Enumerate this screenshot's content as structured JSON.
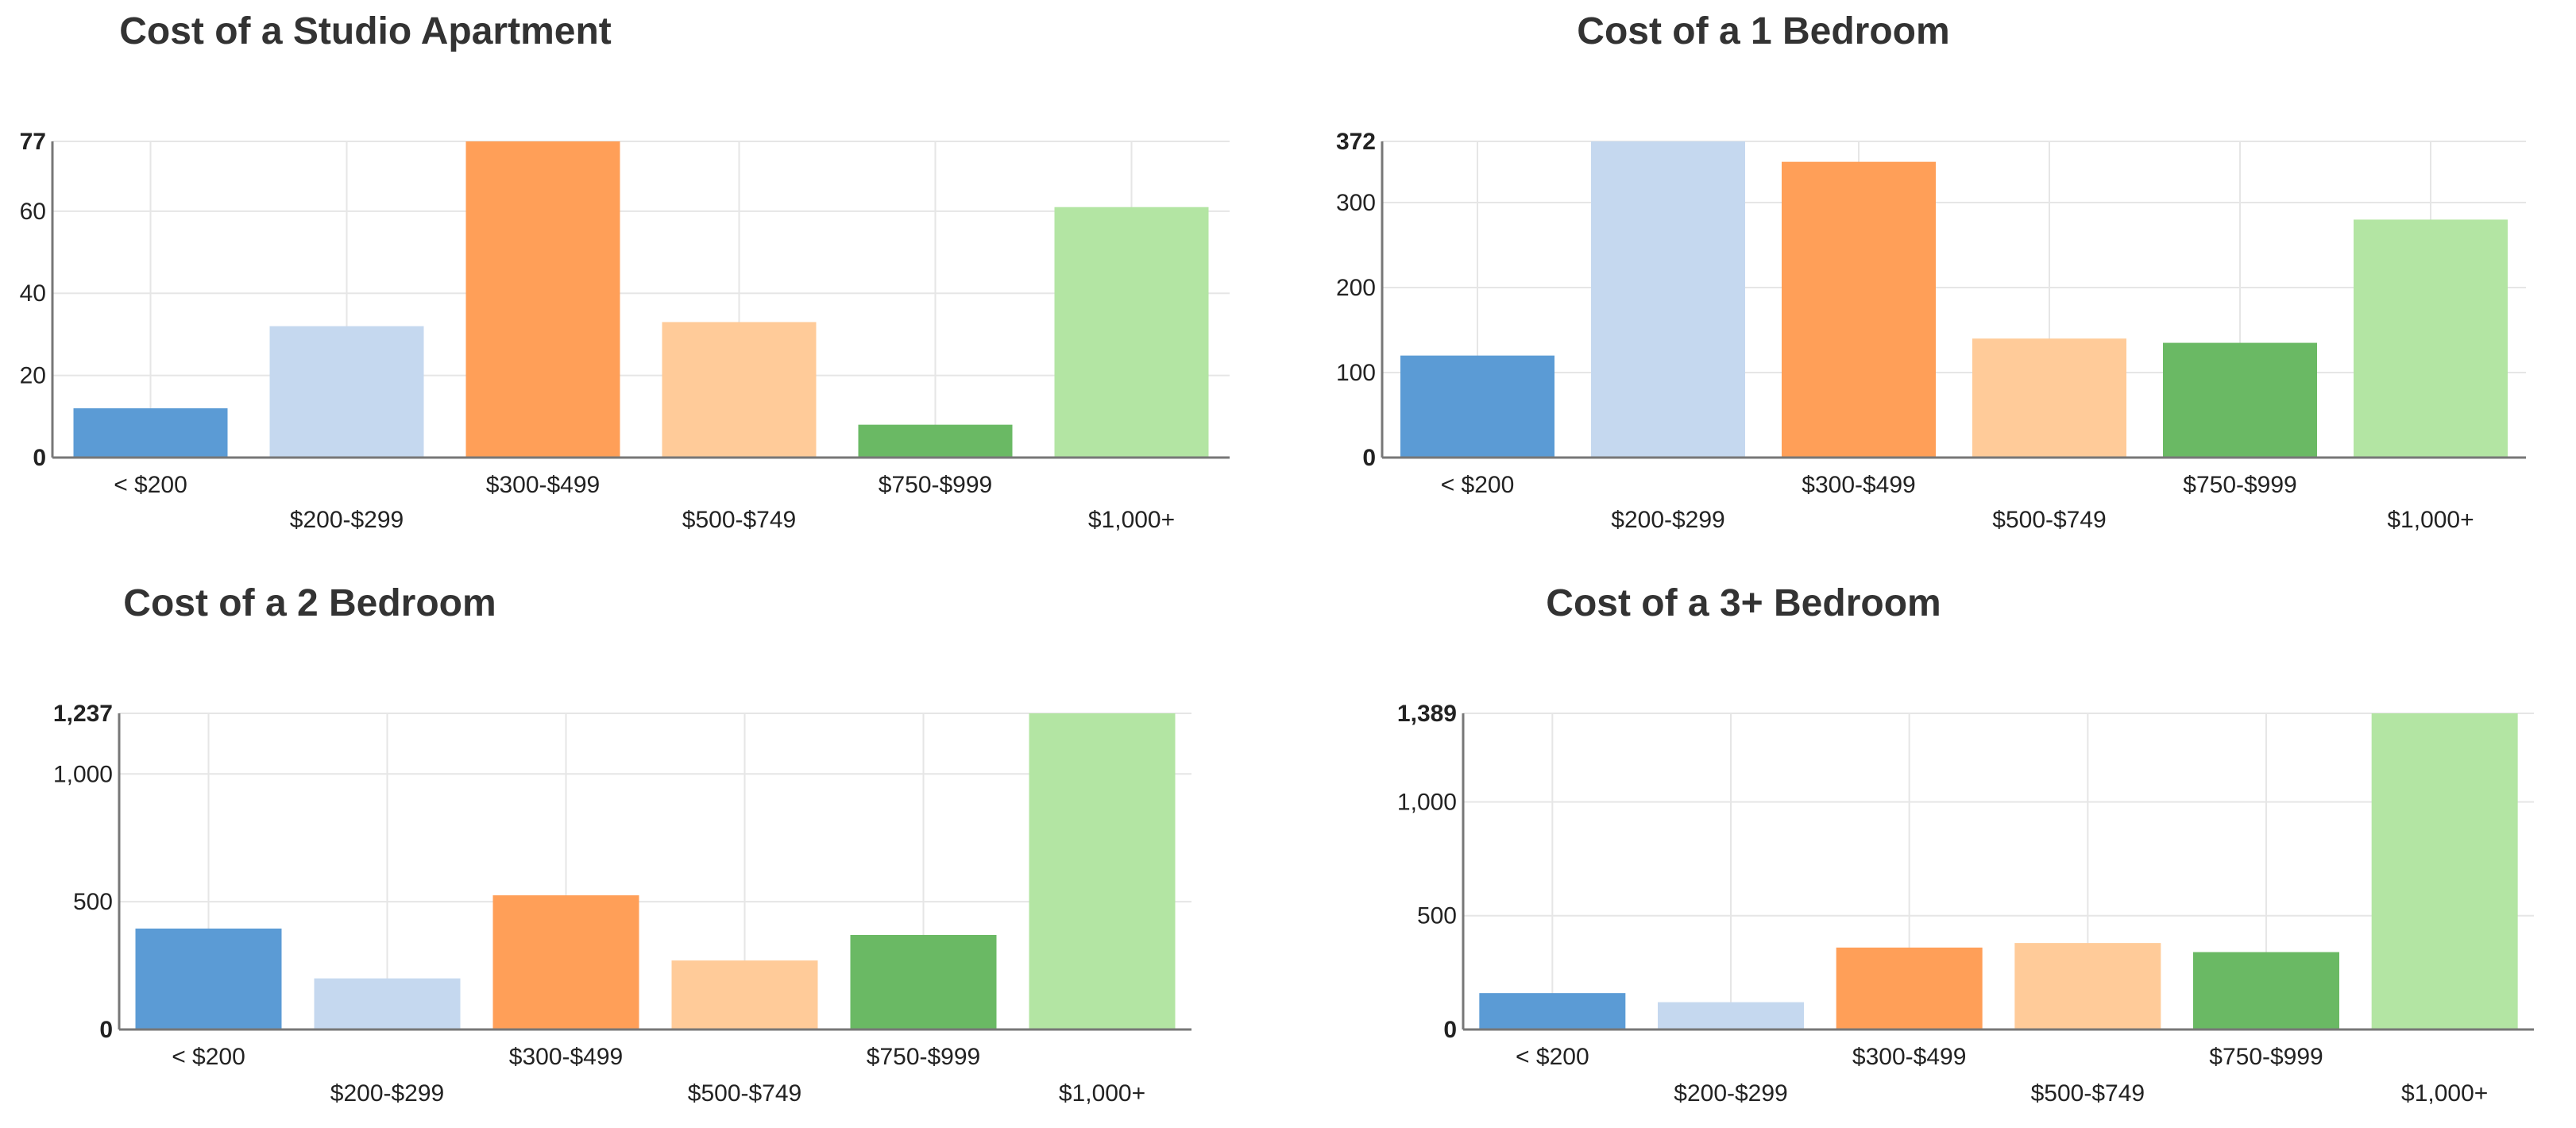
{
  "chart_data": [
    {
      "type": "bar",
      "title": "Cost of a Studio Apartment",
      "categories": [
        "< $200",
        "$200-$299",
        "$300-$499",
        "$500-$749",
        "$750-$999",
        "$1,000+"
      ],
      "values": [
        12,
        32,
        77,
        33,
        8,
        61
      ],
      "ylim": [
        0,
        77
      ],
      "yticks": [
        "0",
        "20",
        "40",
        "60",
        "77"
      ],
      "ytick_values": [
        0,
        20,
        40,
        60,
        77
      ],
      "xlabel": "",
      "ylabel": "",
      "grid": true
    },
    {
      "type": "bar",
      "title": "Cost of a 1 Bedroom",
      "categories": [
        "< $200",
        "$200-$299",
        "$300-$499",
        "$500-$749",
        "$750-$999",
        "$1,000+"
      ],
      "values": [
        120,
        372,
        348,
        140,
        135,
        280
      ],
      "ylim": [
        0,
        372
      ],
      "yticks": [
        "0",
        "100",
        "200",
        "300",
        "372"
      ],
      "ytick_values": [
        0,
        100,
        200,
        300,
        372
      ],
      "xlabel": "",
      "ylabel": "",
      "grid": true
    },
    {
      "type": "bar",
      "title": "Cost of a 2 Bedroom",
      "categories": [
        "< $200",
        "$200-$299",
        "$300-$499",
        "$500-$749",
        "$750-$999",
        "$1,000+"
      ],
      "values": [
        395,
        200,
        525,
        270,
        370,
        1237
      ],
      "ylim": [
        0,
        1237
      ],
      "yticks": [
        "0",
        "500",
        "1,000",
        "1,237"
      ],
      "ytick_values": [
        0,
        500,
        1000,
        1237
      ],
      "xlabel": "",
      "ylabel": "",
      "grid": true
    },
    {
      "type": "bar",
      "title": "Cost of a 3+ Bedroom",
      "categories": [
        "< $200",
        "$200-$299",
        "$300-$499",
        "$500-$749",
        "$750-$999",
        "$1,000+"
      ],
      "values": [
        160,
        120,
        360,
        380,
        340,
        1389
      ],
      "ylim": [
        0,
        1389
      ],
      "yticks": [
        "0",
        "500",
        "1,000",
        "1,389"
      ],
      "ytick_values": [
        0,
        500,
        1000,
        1389
      ],
      "xlabel": "",
      "ylabel": "",
      "grid": true
    }
  ],
  "colors": [
    "#5b9bd5",
    "#c5d8ef",
    "#ff9f58",
    "#ffcb99",
    "#6ab964",
    "#b3e5a3"
  ]
}
